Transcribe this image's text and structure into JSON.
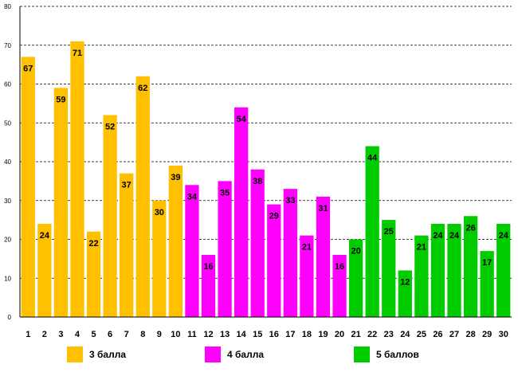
{
  "chart_data": {
    "type": "bar",
    "categories": [
      "1",
      "2",
      "3",
      "4",
      "5",
      "6",
      "7",
      "8",
      "9",
      "10",
      "11",
      "12",
      "13",
      "14",
      "15",
      "16",
      "17",
      "18",
      "19",
      "20",
      "21",
      "22",
      "23",
      "24",
      "25",
      "26",
      "27",
      "28",
      "29",
      "30"
    ],
    "values": [
      67,
      24,
      59,
      71,
      22,
      52,
      37,
      62,
      30,
      39,
      34,
      16,
      35,
      54,
      38,
      29,
      33,
      21,
      31,
      16,
      20,
      44,
      25,
      12,
      21,
      24,
      24,
      26,
      17,
      24
    ],
    "groups": [
      0,
      0,
      0,
      0,
      0,
      0,
      0,
      0,
      0,
      0,
      1,
      1,
      1,
      1,
      1,
      1,
      1,
      1,
      1,
      1,
      2,
      2,
      2,
      2,
      2,
      2,
      2,
      2,
      2,
      2
    ],
    "series": [
      {
        "name": "3 балла",
        "color": "#FFC000"
      },
      {
        "name": "4 балла",
        "color": "#FF00FF"
      },
      {
        "name": "5 баллов",
        "color": "#00CC00"
      }
    ],
    "ylim": [
      0,
      80
    ],
    "yticks": [
      "0",
      "10",
      "20",
      "30",
      "40",
      "50",
      "60",
      "70",
      "80"
    ],
    "grid": true,
    "legend_position": "bottom",
    "title": "",
    "xlabel": "",
    "ylabel": ""
  },
  "legend": [
    {
      "label": "3 балла",
      "color": "#FFC000"
    },
    {
      "label": "4 балла",
      "color": "#FF00FF"
    },
    {
      "label": "5 баллов",
      "color": "#00CC00"
    }
  ]
}
